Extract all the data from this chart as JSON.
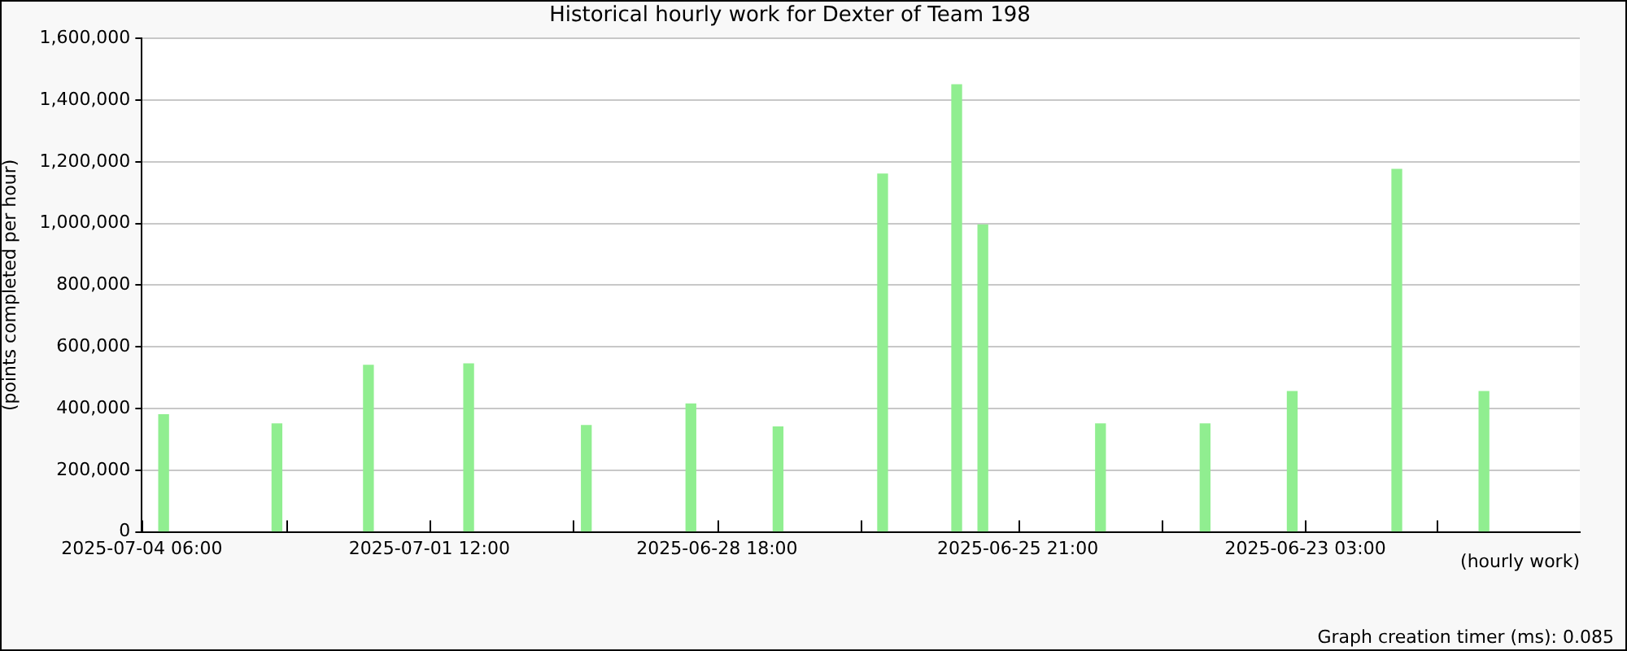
{
  "chart_data": {
    "type": "bar",
    "title": "Historical hourly work for Dexter of Team 198",
    "ylabel": "(points completed per hour)",
    "xlabel": "(hourly work)",
    "annotations": [
      "Graph creation timer (ms): 0.085"
    ],
    "x": [
      "2025-07-04T01:00",
      "2025-07-02T23:00",
      "2025-07-02T02:00",
      "2025-07-01T03:00",
      "2025-06-30T00:00",
      "2025-06-29T00:00",
      "2025-06-28T04:00",
      "2025-06-27T04:00",
      "2025-06-26T11:00",
      "2025-06-26T05:00",
      "2025-06-25T02:00",
      "2025-06-24T02:00",
      "2025-06-23T06:00",
      "2025-06-22T06:00",
      "2025-06-21T10:00"
    ],
    "values": [
      380000,
      350000,
      540000,
      545000,
      345000,
      415000,
      340000,
      1160000,
      1450000,
      995000,
      350000,
      350000,
      455000,
      1175000,
      455000
    ],
    "color": "#90ee90",
    "xlim": [
      "2025-07-04T06:00",
      "2025-06-20T12:00"
    ],
    "xticks": [
      {
        "value": "2025-07-04T06:00",
        "label": "2025-07-04 06:00"
      },
      {
        "value": "2025-07-02T21:00",
        "label": null
      },
      {
        "value": "2025-07-01T12:00",
        "label": "2025-07-01 12:00"
      },
      {
        "value": "2025-06-30T03:00",
        "label": null
      },
      {
        "value": "2025-06-28T18:00",
        "label": "2025-06-28 18:00"
      },
      {
        "value": "2025-06-27T09:00",
        "label": null
      },
      {
        "value": "2025-06-25T21:00",
        "label": "2025-06-25 21:00"
      },
      {
        "value": "2025-06-24T12:00",
        "label": null
      },
      {
        "value": "2025-06-23T03:00",
        "label": "2025-06-23 03:00"
      },
      {
        "value": "2025-06-21T21:00",
        "label": null
      }
    ],
    "ylim": [
      0,
      1600000
    ],
    "yticks": [
      {
        "value": 0,
        "label": "0"
      },
      {
        "value": 200000,
        "label": "200,000"
      },
      {
        "value": 400000,
        "label": "400,000"
      },
      {
        "value": 600000,
        "label": "600,000"
      },
      {
        "value": 800000,
        "label": "800,000"
      },
      {
        "value": 1000000,
        "label": "1,000,000"
      },
      {
        "value": 1200000,
        "label": "1,200,000"
      },
      {
        "value": 1400000,
        "label": "1,400,000"
      },
      {
        "value": 1600000,
        "label": "1,600,000"
      }
    ],
    "grid": "y",
    "legend": false
  }
}
